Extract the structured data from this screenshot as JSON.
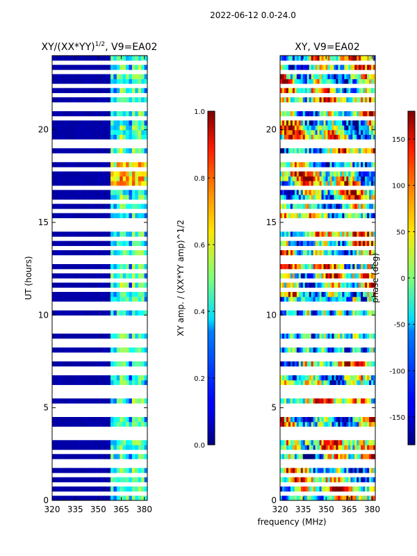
{
  "figure": {
    "suptitle": "2022-06-12 0.0-24.0",
    "shared_xlabel": "frequency (MHz)"
  },
  "chart_data": [
    {
      "type": "heatmap",
      "title_base": "XY/(XX*YY)",
      "title_sup": "1/2",
      "title_suffix": ", V9=EA02",
      "ylabel": "UT (hours)",
      "xlim": [
        320,
        382
      ],
      "ylim": [
        0,
        24
      ],
      "xticks": [
        320,
        335,
        350,
        365,
        380
      ],
      "yticks": [
        0,
        5,
        10,
        15,
        20
      ],
      "colormap": "jet",
      "colorbar": {
        "label": "XY amp. / (XX*YY amp)^1/2",
        "range": [
          0.0,
          1.0
        ],
        "ticks": [
          "0.0",
          "0.2",
          "0.4",
          "0.6",
          "0.8",
          "1.0"
        ]
      },
      "summary": "Near-zero amplitude (~0.02) for 320-359 MHz; elevated normalized amplitude (~0.3-0.6, peaks ~0.75 near 17-18 h) in 360-382 MHz band; white horizontal gaps indicate flagged times"
    },
    {
      "type": "heatmap",
      "title": "XY, V9=EA02",
      "xlim": [
        320,
        382
      ],
      "ylim": [
        0,
        24
      ],
      "xticks": [
        320,
        335,
        350,
        365,
        380
      ],
      "yticks": [
        0,
        5,
        10,
        15,
        20
      ],
      "colormap": "jet",
      "colorbar": {
        "label": "phase (deg)",
        "range": [
          -180,
          180
        ],
        "ticks": [
          "-150",
          "-100",
          "-50",
          "0",
          "50",
          "100",
          "150"
        ]
      },
      "summary": "Phase varies across full -180 to 180 deg range with striated noisy structure; white gaps mark flagged times"
    }
  ],
  "flagged_hours": [
    0.4,
    0.95,
    1.3,
    1.85,
    2.2,
    2.55,
    3.0,
    3.3,
    3.6,
    3.9,
    4.25,
    4.55,
    4.9,
    5.2,
    5.55,
    5.8,
    6.2,
    6.5,
    6.85,
    7.15,
    7.55,
    7.95,
    8.3,
    8.7,
    9.05,
    9.35,
    9.65,
    9.95,
    10.3,
    10.7,
    11.0,
    11.45,
    11.9,
    12.3,
    12.8,
    13.2,
    13.7,
    14.05,
    14.55,
    14.9,
    15.2,
    15.55,
    16.1,
    16.9,
    17.8,
    18.3,
    18.55,
    19.05,
    19.25,
    19.45,
    20.6,
    21.05,
    21.45,
    21.9,
    22.3,
    22.75,
    23.05,
    23.25,
    23.55
  ]
}
